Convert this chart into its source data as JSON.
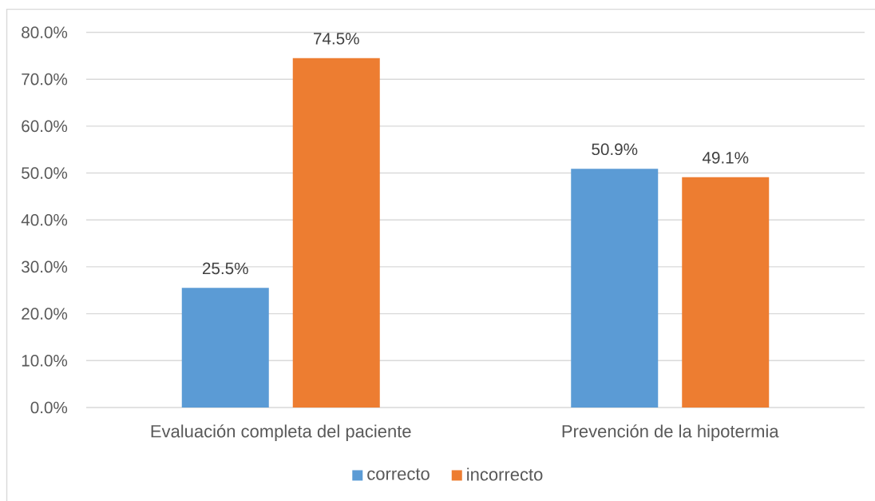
{
  "chart_data": {
    "type": "bar",
    "categories": [
      "Evaluación completa del paciente",
      "Prevención de la hipotermia"
    ],
    "series": [
      {
        "name": "correcto",
        "color": "#5b9bd5",
        "values": [
          25.5,
          50.9
        ],
        "value_labels": [
          "25.5%",
          "50.9%"
        ]
      },
      {
        "name": "incorrecto",
        "color": "#ed7d31",
        "values": [
          74.5,
          49.1
        ],
        "value_labels": [
          "74.5%",
          "49.1%"
        ]
      }
    ],
    "ylim": [
      0,
      80
    ],
    "yticks": [
      {
        "value": 0,
        "label": "0.0%"
      },
      {
        "value": 10,
        "label": "10.0%"
      },
      {
        "value": 20,
        "label": "20.0%"
      },
      {
        "value": 30,
        "label": "30.0%"
      },
      {
        "value": 40,
        "label": "40.0%"
      },
      {
        "value": 50,
        "label": "50.0%"
      },
      {
        "value": 60,
        "label": "60.0%"
      },
      {
        "value": 70,
        "label": "70.0%"
      },
      {
        "value": 80,
        "label": "80.0%"
      }
    ],
    "grid": "y",
    "legend": "bottom"
  }
}
